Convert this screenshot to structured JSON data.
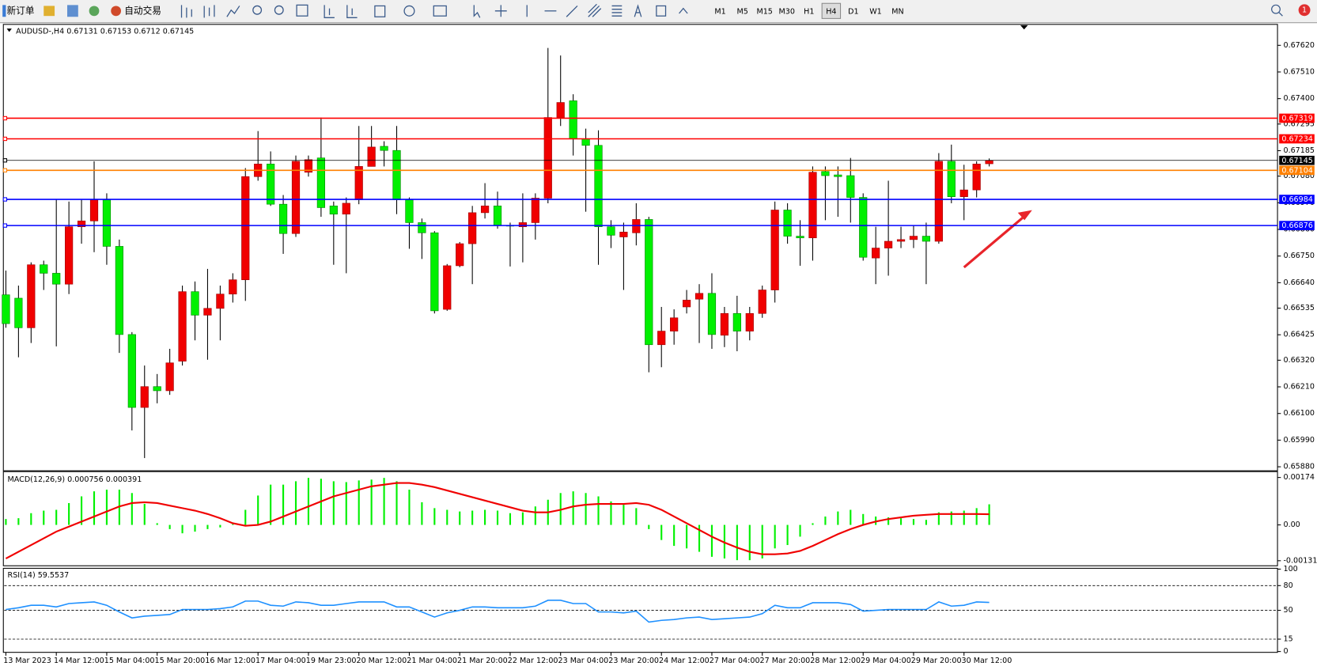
{
  "toolbar": {
    "new_order": "新订单",
    "auto_trading": "自动交易",
    "timeframes": [
      "M1",
      "M5",
      "M15",
      "M30",
      "H1",
      "H4",
      "D1",
      "W1",
      "MN"
    ],
    "active_timeframe": "H4",
    "notification_count": "1"
  },
  "chart_data": [
    {
      "type": "candlestick",
      "title": "AUDUSD-,H4",
      "categories": [
        "13 Mar 2023",
        null,
        null,
        null,
        "14 Mar 12:00",
        null,
        null,
        null,
        "15 Mar 04:00",
        null,
        null,
        null,
        "15 Mar 20:00",
        null,
        null,
        null,
        "16 Mar 12:00",
        null,
        null,
        null,
        "17 Mar 04:00",
        null,
        null,
        null,
        "19 Mar 23:00",
        null,
        null,
        null,
        "20 Mar 12:00",
        null,
        null,
        null,
        "21 Mar 04:00",
        null,
        null,
        null,
        "21 Mar 20:00",
        null,
        null,
        null,
        "22 Mar 12:00",
        null,
        null,
        null,
        "23 Mar 04:00",
        null,
        null,
        null,
        "23 Mar 20:00",
        null,
        null,
        null,
        "24 Mar 12:00",
        null,
        null,
        null,
        "27 Mar 04:00",
        null,
        null,
        null,
        "27 Mar 20:00",
        null,
        null,
        null,
        "28 Mar 12:00",
        null,
        null,
        null,
        "29 Mar 04:00",
        null,
        null,
        null,
        "29 Mar 20:00",
        null,
        null,
        null,
        "30 Mar 12:00",
        null,
        null
      ],
      "open": [
        0.6659,
        0.66576,
        0.66454,
        0.66714,
        0.66679,
        0.66634,
        0.66871,
        0.66895,
        0.66982,
        0.6679,
        0.66426,
        0.66125,
        0.66211,
        0.66194,
        0.66316,
        0.66603,
        0.66506,
        0.66534,
        0.66593,
        0.66652,
        0.67078,
        0.6713,
        0.66964,
        0.66843,
        0.67096,
        0.67155,
        0.66957,
        0.66923,
        0.66982,
        0.6712,
        0.67203,
        0.67186,
        0.66982,
        0.66888,
        0.66846,
        0.6653,
        0.6671,
        0.66801,
        0.66929,
        0.66957,
        0.66877,
        0.66871,
        0.66888,
        0.66989,
        0.67322,
        0.67391,
        0.67234,
        0.67207,
        0.66871,
        0.66829,
        0.66846,
        0.66901,
        0.66384,
        0.6644,
        0.6654,
        0.66572,
        0.66596,
        0.66423,
        0.66513,
        0.6644,
        0.66513,
        0.6661,
        0.6694,
        0.66832,
        0.66825,
        0.67099,
        0.67085,
        0.67082,
        0.66992,
        0.66742,
        0.66783,
        0.66811,
        0.66818,
        0.66832,
        0.66811,
        0.67141,
        0.66995,
        0.67023,
        0.67131
      ],
      "high": [
        0.6669,
        0.66628,
        0.66724,
        0.66731,
        0.66985,
        0.66975,
        0.66982,
        0.67141,
        0.67009,
        0.66818,
        0.66436,
        0.66298,
        0.66263,
        0.66367,
        0.66628,
        0.66645,
        0.66697,
        0.66628,
        0.66679,
        0.67113,
        0.67266,
        0.67182,
        0.67002,
        0.67165,
        0.67165,
        0.67322,
        0.66975,
        0.66992,
        0.67287,
        0.67287,
        0.67224,
        0.67287,
        0.66992,
        0.66905,
        0.66853,
        0.66717,
        0.66808,
        0.66957,
        0.67051,
        0.67016,
        0.66888,
        0.67009,
        0.67009,
        0.67609,
        0.67578,
        0.67418,
        0.67276,
        0.67269,
        0.66898,
        0.66888,
        0.66968,
        0.66912,
        0.6654,
        0.6653,
        0.6661,
        0.66634,
        0.66679,
        0.6654,
        0.66586,
        0.6654,
        0.66628,
        0.66975,
        0.66968,
        0.66898,
        0.6712,
        0.6712,
        0.6712,
        0.67155,
        0.67009,
        0.66871,
        0.67061,
        0.66871,
        0.66877,
        0.66888,
        0.67175,
        0.6721,
        0.67127,
        0.67141,
        0.67153
      ],
      "low": [
        0.66454,
        0.66332,
        0.66391,
        0.6661,
        0.66377,
        0.66593,
        0.66801,
        0.66766,
        0.66714,
        0.6635,
        0.6603,
        0.65916,
        0.66142,
        0.66177,
        0.66298,
        0.66402,
        0.66322,
        0.66402,
        0.66558,
        0.66565,
        0.67061,
        0.66957,
        0.66759,
        0.66829,
        0.67078,
        0.66912,
        0.66714,
        0.66679,
        0.66964,
        0.6712,
        0.6712,
        0.66923,
        0.6678,
        0.66738,
        0.66513,
        0.66524,
        0.66704,
        0.66634,
        0.66905,
        0.66863,
        0.66707,
        0.66724,
        0.66818,
        0.66968,
        0.67287,
        0.67165,
        0.66933,
        0.66714,
        0.66783,
        0.6661,
        0.66794,
        0.6627,
        0.66291,
        0.66384,
        0.66513,
        0.66391,
        0.66367,
        0.66374,
        0.66357,
        0.66402,
        0.66495,
        0.66558,
        0.66801,
        0.6671,
        0.66731,
        0.66898,
        0.66912,
        0.66888,
        0.66731,
        0.66634,
        0.66669,
        0.66783,
        0.66783,
        0.66634,
        0.66801,
        0.66968,
        0.66898,
        0.66992,
        0.6712
      ],
      "close": [
        0.66471,
        0.66454,
        0.66714,
        0.66679,
        0.66634,
        0.66871,
        0.66895,
        0.66982,
        0.6679,
        0.66426,
        0.66125,
        0.66211,
        0.66194,
        0.66309,
        0.66603,
        0.66506,
        0.66534,
        0.66593,
        0.66652,
        0.67078,
        0.6713,
        0.66964,
        0.66843,
        0.67141,
        0.67148,
        0.6695,
        0.66923,
        0.66968,
        0.6712,
        0.672,
        0.67186,
        0.66982,
        0.66888,
        0.66846,
        0.66524,
        0.6671,
        0.66801,
        0.66929,
        0.66957,
        0.66877,
        0.66874,
        0.66888,
        0.66989,
        0.67322,
        0.67384,
        0.67234,
        0.67207,
        0.66871,
        0.66836,
        0.66849,
        0.66901,
        0.66384,
        0.6644,
        0.66495,
        0.66568,
        0.66596,
        0.66426,
        0.66513,
        0.6644,
        0.66513,
        0.6661,
        0.6694,
        0.66832,
        0.66825,
        0.67096,
        0.67082,
        0.67078,
        0.66992,
        0.66745,
        0.66783,
        0.66811,
        0.66818,
        0.66832,
        0.66811,
        0.67141,
        0.66995,
        0.67023,
        0.6713,
        0.67145
      ],
      "up_color": "#f00000",
      "down_color": "#00f000",
      "ylim": [
        0.65867,
        0.67703
      ],
      "yticks": [
        {
          "value": 0.6762,
          "label": "0.67620"
        },
        {
          "value": 0.6751,
          "label": "0.67510"
        },
        {
          "value": 0.674,
          "label": "0.67400"
        },
        0.67295,
        0.67185,
        {
          "value": 0.6708,
          "label": "0.67080"
        },
        {
          "value": 0.6697,
          "label": "0.66970"
        },
        {
          "value": 0.6686,
          "label": "0.66860"
        },
        {
          "value": 0.6675,
          "label": "0.66750"
        },
        {
          "value": 0.6664,
          "label": "0.66640"
        },
        0.66535,
        0.66425,
        {
          "value": 0.6632,
          "label": "0.66320"
        },
        {
          "value": 0.6621,
          "label": "0.66210"
        },
        {
          "value": 0.661,
          "label": "0.66100"
        },
        {
          "value": 0.6599,
          "label": "0.65990"
        },
        {
          "value": 0.6588,
          "label": "0.65880"
        }
      ],
      "price_lines": [
        {
          "value": 0.67319,
          "color": "#ff0000"
        },
        {
          "value": 0.67234,
          "color": "#ff0000"
        },
        {
          "value": 0.67145,
          "color": "#000000"
        },
        {
          "value": 0.67104,
          "color": "#ff8000"
        },
        {
          "value": 0.66984,
          "color": "#0000ff"
        },
        {
          "value": 0.66876,
          "color": "#0000ff"
        }
      ]
    },
    {
      "type": "macd",
      "title": "MACD(12,26,9)",
      "histogram_color": "#00f000",
      "signal_color": "#f00000",
      "histogram_values": [
        0.000216,
        0.000246,
        0.000431,
        0.000524,
        0.000554,
        0.000801,
        0.001047,
        0.001232,
        0.001294,
        0.001294,
        0.00117,
        0.00077,
        6.2e-05,
        -0.000154,
        -0.000308,
        -0.000246,
        -0.000154,
        -9.2e-05,
        3.1e-05,
        0.000554,
        0.001078,
        0.001478,
        0.001478,
        0.001602,
        0.001725,
        0.001694,
        0.001602,
        0.001571,
        0.001632,
        0.001663,
        0.001725,
        0.001602,
        0.001294,
        0.000832,
        0.000616,
        0.000554,
        0.000493,
        0.000524,
        0.000554,
        0.000524,
        0.000431,
        0.000462,
        0.000678,
        0.000924,
        0.00117,
        0.001232,
        0.00117,
        0.001047,
        0.000862,
        0.000739,
        0.000616,
        -0.000154,
        -0.000554,
        -0.00077,
        -0.000862,
        -0.000986,
        -0.00117,
        -0.001232,
        -0.001294,
        -0.001294,
        -0.001232,
        -0.000862,
        -0.000739,
        -0.000431,
        6.2e-05,
        0.000308,
        0.000493,
        0.000554,
        0.0004,
        0.000308,
        0.000277,
        0.000246,
        0.000216,
        0.000185,
        0.000462,
        0.000493,
        0.000524,
        0.000616,
        0.000756
      ],
      "signal_values": [
        -0.001232,
        -0.000986,
        -0.000739,
        -0.000493,
        -0.000246,
        -6.2e-05,
        0.000123,
        0.000308,
        0.000493,
        0.000678,
        0.000801,
        0.000832,
        0.000801,
        0.000708,
        0.000616,
        0.000524,
        0.0004,
        0.000246,
        6.2e-05,
        -3.1e-05,
        0,
        0.000123,
        0.000308,
        0.000493,
        0.000678,
        0.000862,
        0.001047,
        0.00117,
        0.001294,
        0.001417,
        0.001478,
        0.00154,
        0.00154,
        0.001478,
        0.001386,
        0.001263,
        0.00114,
        0.001016,
        0.000893,
        0.00077,
        0.000647,
        0.000524,
        0.000462,
        0.000462,
        0.000554,
        0.000678,
        0.000739,
        0.00077,
        0.00077,
        0.00077,
        0.000801,
        0.000739,
        0.000554,
        0.000308,
        6.2e-05,
        -0.000185,
        -0.000431,
        -0.000647,
        -0.000832,
        -0.000986,
        -0.001078,
        -0.001078,
        -0.001047,
        -0.000955,
        -0.00077,
        -0.000554,
        -0.000339,
        -0.000154,
        0,
        0.000123,
        0.000216,
        0.000277,
        0.000339,
        0.00037,
        0.0004,
        0.0004,
        0.0004,
        0.0004,
        0.000391
      ],
      "ylim": [
        -0.001314,
        0.00174
      ],
      "yticks": [
        0.00174,
        {
          "value": 0,
          "label": "0.00"
        },
        -0.001314
      ]
    },
    {
      "type": "line",
      "title": "RSI(14)",
      "color": "#1e90ff",
      "values": [
        51.0,
        53.1,
        56.1,
        56.1,
        54.1,
        58.2,
        59.2,
        60.2,
        56.1,
        48.0,
        40.8,
        42.9,
        43.9,
        44.9,
        51.0,
        51.0,
        51.0,
        52.0,
        54.1,
        61.2,
        61.2,
        56.1,
        55.1,
        60.2,
        59.2,
        56.1,
        56.1,
        58.2,
        60.2,
        60.2,
        60.2,
        54.1,
        54.1,
        48.0,
        41.8,
        46.9,
        50.0,
        54.1,
        54.1,
        53.1,
        53.1,
        53.1,
        55.1,
        62.2,
        62.2,
        58.2,
        58.2,
        48.0,
        48.0,
        46.9,
        49.0,
        35.7,
        37.8,
        38.8,
        40.8,
        41.8,
        38.8,
        39.8,
        40.8,
        41.8,
        45.9,
        56.1,
        53.1,
        53.1,
        59.2,
        59.2,
        59.2,
        57.1,
        49.0,
        50.0,
        51.0,
        51.0,
        51.0,
        51.0,
        60.2,
        55.1,
        56.1,
        60.2,
        59.5537
      ],
      "ylim": [
        0,
        100
      ],
      "yticks": [
        100,
        80,
        50,
        15,
        0
      ],
      "levels": [
        80,
        50,
        15
      ]
    }
  ]
}
